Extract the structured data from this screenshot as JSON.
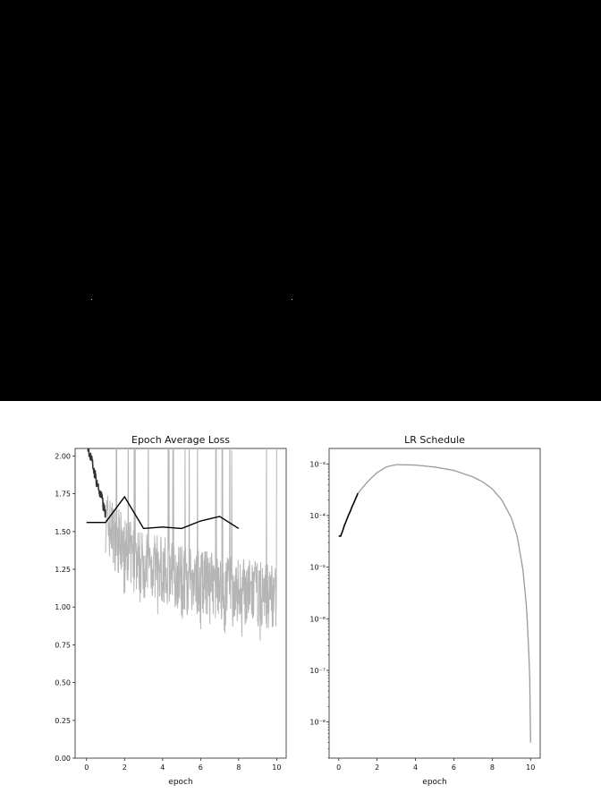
{
  "chart_data": [
    {
      "type": "line",
      "title": "Epoch Average Loss",
      "xlabel": "epoch",
      "ylabel": "",
      "xlim": [
        -0.6,
        10.5
      ],
      "ylim": [
        0,
        2.05
      ],
      "xticks": [
        0,
        2,
        4,
        6,
        8,
        10
      ],
      "xtick_labels": [
        "0",
        "2",
        "4",
        "6",
        "8",
        "10"
      ],
      "yticks": [
        0.0,
        0.25,
        0.5,
        0.75,
        1.0,
        1.25,
        1.5,
        1.75,
        2.0
      ],
      "ytick_labels": [
        "0.00",
        "0.25",
        "0.50",
        "0.75",
        "1.00",
        "1.25",
        "1.50",
        "1.75",
        "2.00"
      ],
      "grid": false,
      "series": [
        {
          "role": "epoch-average",
          "color": "#000000",
          "x": [
            0,
            1,
            2,
            3,
            4,
            5,
            6,
            7,
            8
          ],
          "y": [
            1.56,
            1.56,
            1.73,
            1.52,
            1.53,
            1.52,
            1.57,
            1.6,
            1.52
          ]
        },
        {
          "role": "per-step-loss-warmup",
          "color": "#333333",
          "x": [
            0.0,
            0.1,
            0.2,
            0.3,
            0.4,
            0.5,
            0.6,
            0.7,
            0.8,
            0.9,
            1.0
          ],
          "y": [
            2.1,
            2.05,
            2.0,
            1.95,
            1.9,
            1.85,
            1.8,
            1.75,
            1.72,
            1.66,
            1.62
          ]
        },
        {
          "role": "per-step-loss",
          "color": "#b5b5b5",
          "x": [
            1.0,
            1.5,
            2.0,
            2.5,
            3.0,
            3.5,
            4.0,
            4.5,
            5.0,
            5.5,
            6.0,
            6.5,
            7.0,
            7.5,
            8.0,
            8.5,
            9.0,
            9.5,
            10.0
          ],
          "y": [
            1.58,
            1.46,
            1.38,
            1.33,
            1.28,
            1.27,
            1.25,
            1.22,
            1.2,
            1.18,
            1.17,
            1.15,
            1.13,
            1.12,
            1.11,
            1.1,
            1.09,
            1.08,
            1.08
          ],
          "noise_amplitude": 0.22
        }
      ]
    },
    {
      "type": "line",
      "title": "LR Schedule",
      "xlabel": "epoch",
      "ylabel": "",
      "yscale": "log",
      "xlim": [
        -0.5,
        10.5
      ],
      "ylim_log10": [
        -8.7,
        -2.7
      ],
      "xticks": [
        0,
        2,
        4,
        6,
        8,
        10
      ],
      "xtick_labels": [
        "0",
        "2",
        "4",
        "6",
        "8",
        "10"
      ],
      "yticks_log10": [
        -3,
        -4,
        -5,
        -6,
        -7,
        -8
      ],
      "ytick_labels": [
        "10⁻³",
        "10⁻⁴",
        "10⁻⁵",
        "10⁻⁶",
        "10⁻⁷",
        "10⁻⁸"
      ],
      "grid": false,
      "series": [
        {
          "role": "warmup",
          "color": "#000000",
          "x": [
            0.0,
            0.1,
            0.2,
            0.3,
            0.4,
            0.5,
            0.6,
            0.7,
            0.8,
            0.9,
            1.0
          ],
          "y": [
            4e-05,
            4e-05,
            5e-05,
            6.5e-05,
            8e-05,
            0.0001,
            0.00012,
            0.00015,
            0.00018,
            0.00022,
            0.00027
          ]
        },
        {
          "role": "schedule",
          "color": "#9a9a9a",
          "x": [
            1.0,
            1.5,
            2.0,
            2.5,
            3.0,
            4.0,
            5.0,
            6.0,
            7.0,
            7.5,
            8.0,
            8.5,
            9.0,
            9.3,
            9.6,
            9.8,
            9.95,
            10.0
          ],
          "y": [
            0.00027,
            0.00045,
            0.00068,
            0.00088,
            0.00097,
            0.00095,
            0.00087,
            0.00075,
            0.00056,
            0.00045,
            0.00033,
            0.0002,
            9e-05,
            4e-05,
            9e-06,
            1.5e-06,
            1e-07,
            4e-09
          ]
        }
      ]
    }
  ]
}
